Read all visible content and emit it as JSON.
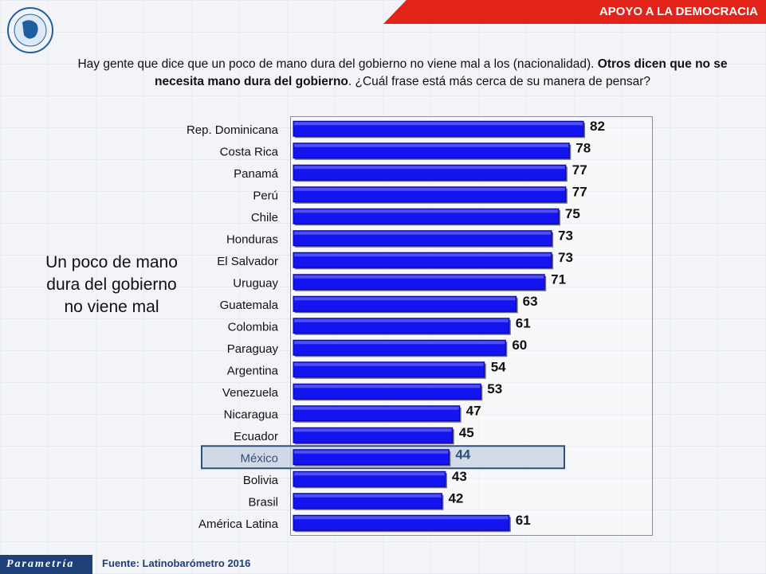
{
  "header": {
    "title": "APOYO A LA DEMOCRACIA"
  },
  "question": {
    "part1": "Hay gente que dice que un poco de mano dura del gobierno no viene mal a los (nacionalidad). ",
    "part2_bold": "Otros dicen que no se necesita mano dura del gobierno",
    "part3": ". ¿Cuál frase está más cerca  de su manera de pensar?"
  },
  "side_label": "Un poco de mano dura del gobierno no viene mal",
  "footer": {
    "logo_text": "Parametría",
    "source": "Fuente: Latinobarómetro 2016"
  },
  "colors": {
    "bar": "#1414f0",
    "bar_edge": "#0000a0",
    "highlight_fill": "#c7d0e0",
    "highlight_border": "#2f4f7f",
    "banner": "#e2231a"
  },
  "chart_data": {
    "type": "bar",
    "orientation": "horizontal",
    "categories": [
      "Rep. Dominicana",
      "Costa Rica",
      "Panamá",
      "Perú",
      "Chile",
      "Honduras",
      "El Salvador",
      "Uruguay",
      "Guatemala",
      "Colombia",
      "Paraguay",
      "Argentina",
      "Venezuela",
      "Nicaragua",
      "Ecuador",
      "México",
      "Bolivia",
      "Brasil",
      "América Latina"
    ],
    "values": [
      82,
      78,
      77,
      77,
      75,
      73,
      73,
      71,
      63,
      61,
      60,
      54,
      53,
      47,
      45,
      44,
      43,
      42,
      61
    ],
    "highlight": "México",
    "xlim": [
      0,
      100
    ],
    "grid": false,
    "legend": "none"
  }
}
